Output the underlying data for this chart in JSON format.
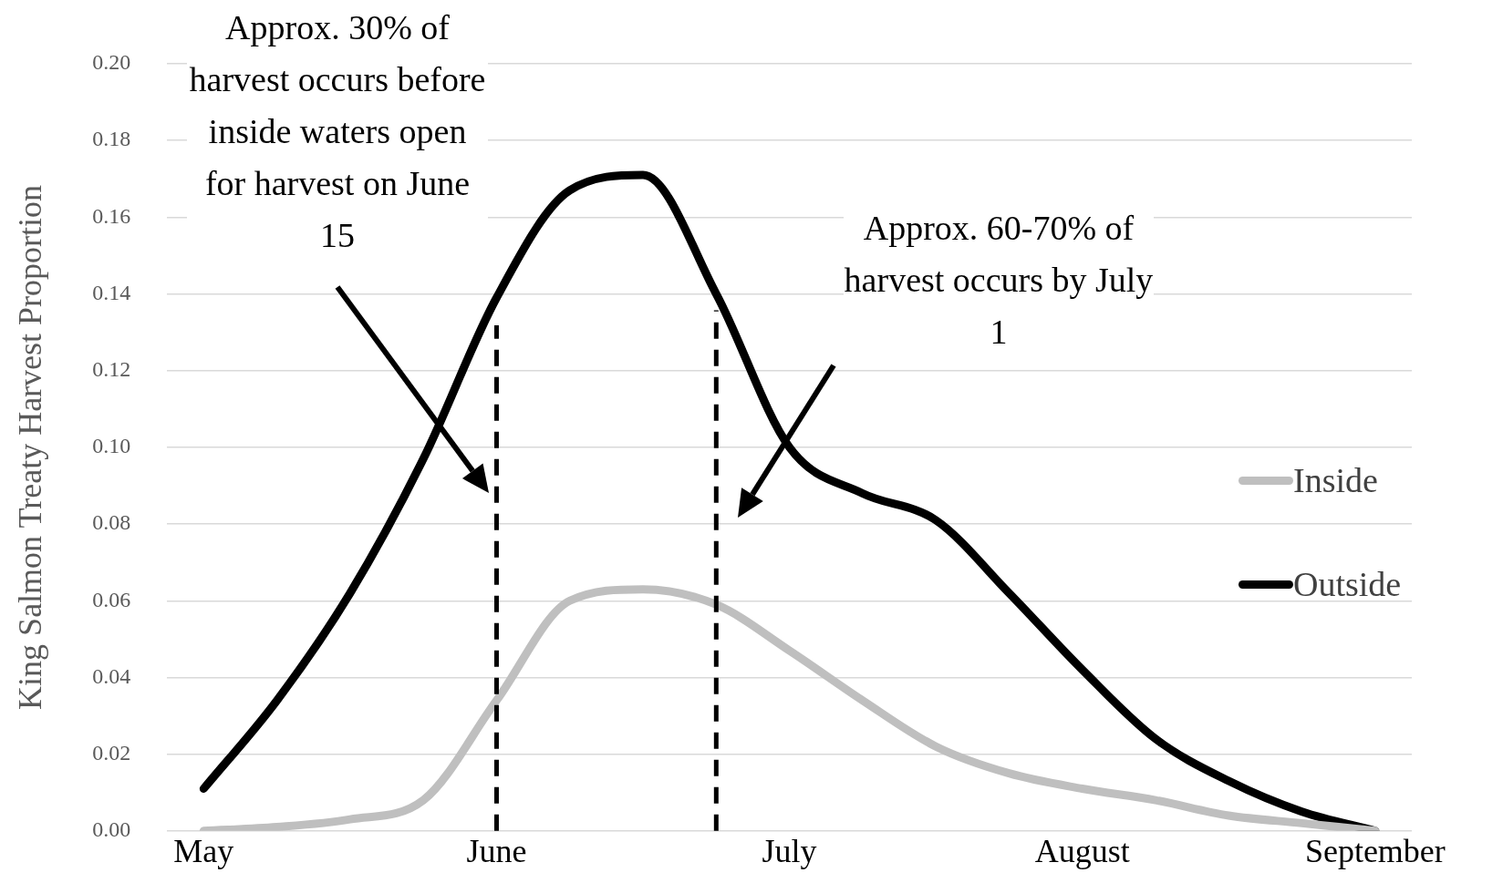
{
  "chart_data": {
    "type": "line",
    "ylabel": "King Salmon Treaty Harvest Proportion",
    "categories": [
      "May",
      null,
      null,
      null,
      "June",
      null,
      null,
      null,
      "July",
      null,
      null,
      null,
      "August",
      null,
      null,
      null,
      "September"
    ],
    "ylim": [
      0,
      0.2
    ],
    "yticks": [
      {
        "value": 0,
        "label": "0.00"
      },
      {
        "value": 0.02,
        "label": "0.02"
      },
      {
        "value": 0.04,
        "label": "0.04"
      },
      {
        "value": 0.06,
        "label": "0.06"
      },
      {
        "value": 0.08,
        "label": "0.08"
      },
      {
        "value": 0.1,
        "label": "0.10"
      },
      {
        "value": 0.12,
        "label": "0.12"
      },
      {
        "value": 0.14,
        "label": "0.14"
      },
      {
        "value": 0.16,
        "label": "0.16"
      },
      {
        "value": 0.18,
        "label": "0.18"
      },
      {
        "value": 0.2,
        "label": "0.20"
      }
    ],
    "grid": "y",
    "legend": "right",
    "line_style": "solid",
    "series": [
      {
        "name": "Inside",
        "color": "#bfbfbf",
        "values": [
          0,
          0.001,
          0.003,
          0.008,
          0.034,
          0.06,
          0.063,
          0.059,
          0.047,
          0.034,
          0.022,
          0.015,
          0.011,
          0.008,
          0.004,
          0.002,
          0
        ]
      },
      {
        "name": "Outside",
        "color": "#000000",
        "values": [
          0.011,
          0.034,
          0.062,
          0.097,
          0.139,
          0.167,
          0.171,
          0.14,
          0.1,
          0.088,
          0.081,
          0.062,
          0.042,
          0.024,
          0.013,
          0.005,
          0
        ]
      }
    ],
    "ref_lines": [
      {
        "axis": "x",
        "value": "June",
        "color": "#000000",
        "line_style": "dashed"
      }
    ],
    "annotations": [
      "Approx. 30% of harvest occurs before inside waters open for harvest on June 15",
      "Approx. 60-70% of harvest occurs by July 1"
    ]
  }
}
